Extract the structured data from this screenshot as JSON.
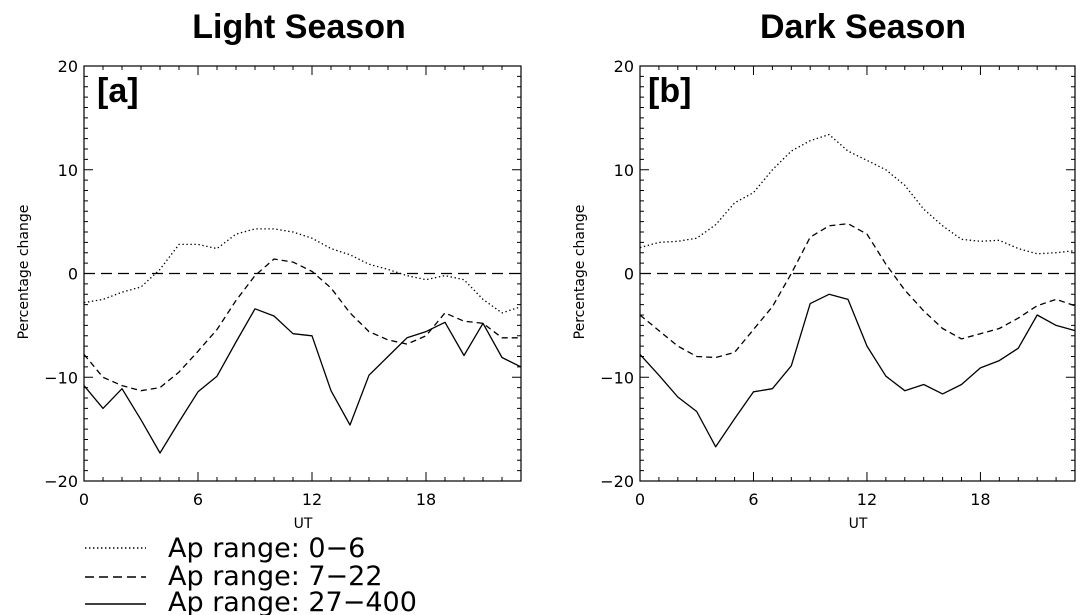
{
  "legend": [
    {
      "label": "Ap range: 0−6",
      "style": "dotted"
    },
    {
      "label": "Ap range: 7−22",
      "style": "dashed"
    },
    {
      "label": "Ap range: 27−400",
      "style": "solid"
    }
  ],
  "chart_data": [
    {
      "type": "line",
      "title": "Light Season",
      "panel_label": "[a]",
      "xlabel": "UT",
      "ylabel": "Percentage change",
      "xlim": [
        0,
        23
      ],
      "ylim": [
        -20,
        20
      ],
      "xticks": [
        0,
        6,
        12,
        18
      ],
      "yticks": [
        -20,
        -10,
        0,
        10,
        20
      ],
      "grid": false,
      "x": [
        0,
        1,
        2,
        3,
        4,
        5,
        6,
        7,
        8,
        9,
        10,
        11,
        12,
        13,
        14,
        15,
        16,
        17,
        18,
        19,
        20,
        21,
        22,
        23
      ],
      "reference_line": {
        "y": 0,
        "style": "long-dash"
      },
      "series": [
        {
          "name": "Ap range: 0−6",
          "style": "dotted",
          "values": [
            -2.8,
            -2.5,
            -1.8,
            -1.3,
            0.4,
            2.8,
            2.8,
            2.4,
            3.8,
            4.3,
            4.3,
            4.0,
            3.4,
            2.4,
            1.8,
            0.9,
            0.4,
            -0.2,
            -0.6,
            -0.2,
            -0.6,
            -2.5,
            -3.8,
            -3.2
          ]
        },
        {
          "name": "Ap range: 7−22",
          "style": "dashed",
          "values": [
            -7.8,
            -10.0,
            -10.8,
            -11.3,
            -11.0,
            -9.5,
            -7.5,
            -5.4,
            -2.6,
            -0.2,
            1.4,
            1.1,
            0.2,
            -1.4,
            -3.8,
            -5.6,
            -6.4,
            -6.8,
            -6.0,
            -3.8,
            -4.6,
            -4.8,
            -6.2,
            -6.2
          ]
        },
        {
          "name": "Ap range: 27−400",
          "style": "solid",
          "values": [
            -10.8,
            -13.0,
            -11.1,
            -14.1,
            -17.3,
            -14.3,
            -11.4,
            -9.9,
            -6.6,
            -3.4,
            -4.1,
            -5.8,
            -6.0,
            -11.3,
            -14.6,
            -9.8,
            -8.0,
            -6.2,
            -5.6,
            -4.7,
            -7.9,
            -4.8,
            -8.1,
            -9.0
          ]
        }
      ]
    },
    {
      "type": "line",
      "title": "Dark Season",
      "panel_label": "[b]",
      "xlabel": "UT",
      "ylabel": "Percentage change",
      "xlim": [
        0,
        23
      ],
      "ylim": [
        -20,
        20
      ],
      "xticks": [
        0,
        6,
        12,
        18
      ],
      "yticks": [
        -20,
        -10,
        0,
        10,
        20
      ],
      "grid": false,
      "x": [
        0,
        1,
        2,
        3,
        4,
        5,
        6,
        7,
        8,
        9,
        10,
        11,
        12,
        13,
        14,
        15,
        16,
        17,
        18,
        19,
        20,
        21,
        22,
        23
      ],
      "reference_line": {
        "y": 0,
        "style": "long-dash"
      },
      "series": [
        {
          "name": "Ap range: 0−6",
          "style": "dotted",
          "values": [
            2.5,
            3.0,
            3.1,
            3.4,
            4.7,
            6.8,
            7.8,
            10.0,
            11.8,
            12.8,
            13.4,
            11.8,
            10.9,
            10.0,
            8.5,
            6.2,
            4.6,
            3.3,
            3.1,
            3.2,
            2.4,
            1.9,
            2.0,
            2.2
          ]
        },
        {
          "name": "Ap range: 7−22",
          "style": "dashed",
          "values": [
            -4.0,
            -5.5,
            -7.0,
            -8.0,
            -8.1,
            -7.6,
            -5.4,
            -3.2,
            0.0,
            3.5,
            4.6,
            4.8,
            3.8,
            0.9,
            -1.6,
            -3.6,
            -5.3,
            -6.3,
            -5.8,
            -5.3,
            -4.3,
            -3.1,
            -2.5,
            -3.1
          ]
        },
        {
          "name": "Ap range: 27−400",
          "style": "solid",
          "values": [
            -7.8,
            -9.8,
            -11.9,
            -13.3,
            -16.7,
            -14.0,
            -11.4,
            -11.1,
            -8.9,
            -2.9,
            -2.0,
            -2.5,
            -7.0,
            -9.9,
            -11.3,
            -10.7,
            -11.6,
            -10.7,
            -9.1,
            -8.4,
            -7.2,
            -4.0,
            -5.0,
            -5.5
          ]
        }
      ]
    }
  ]
}
